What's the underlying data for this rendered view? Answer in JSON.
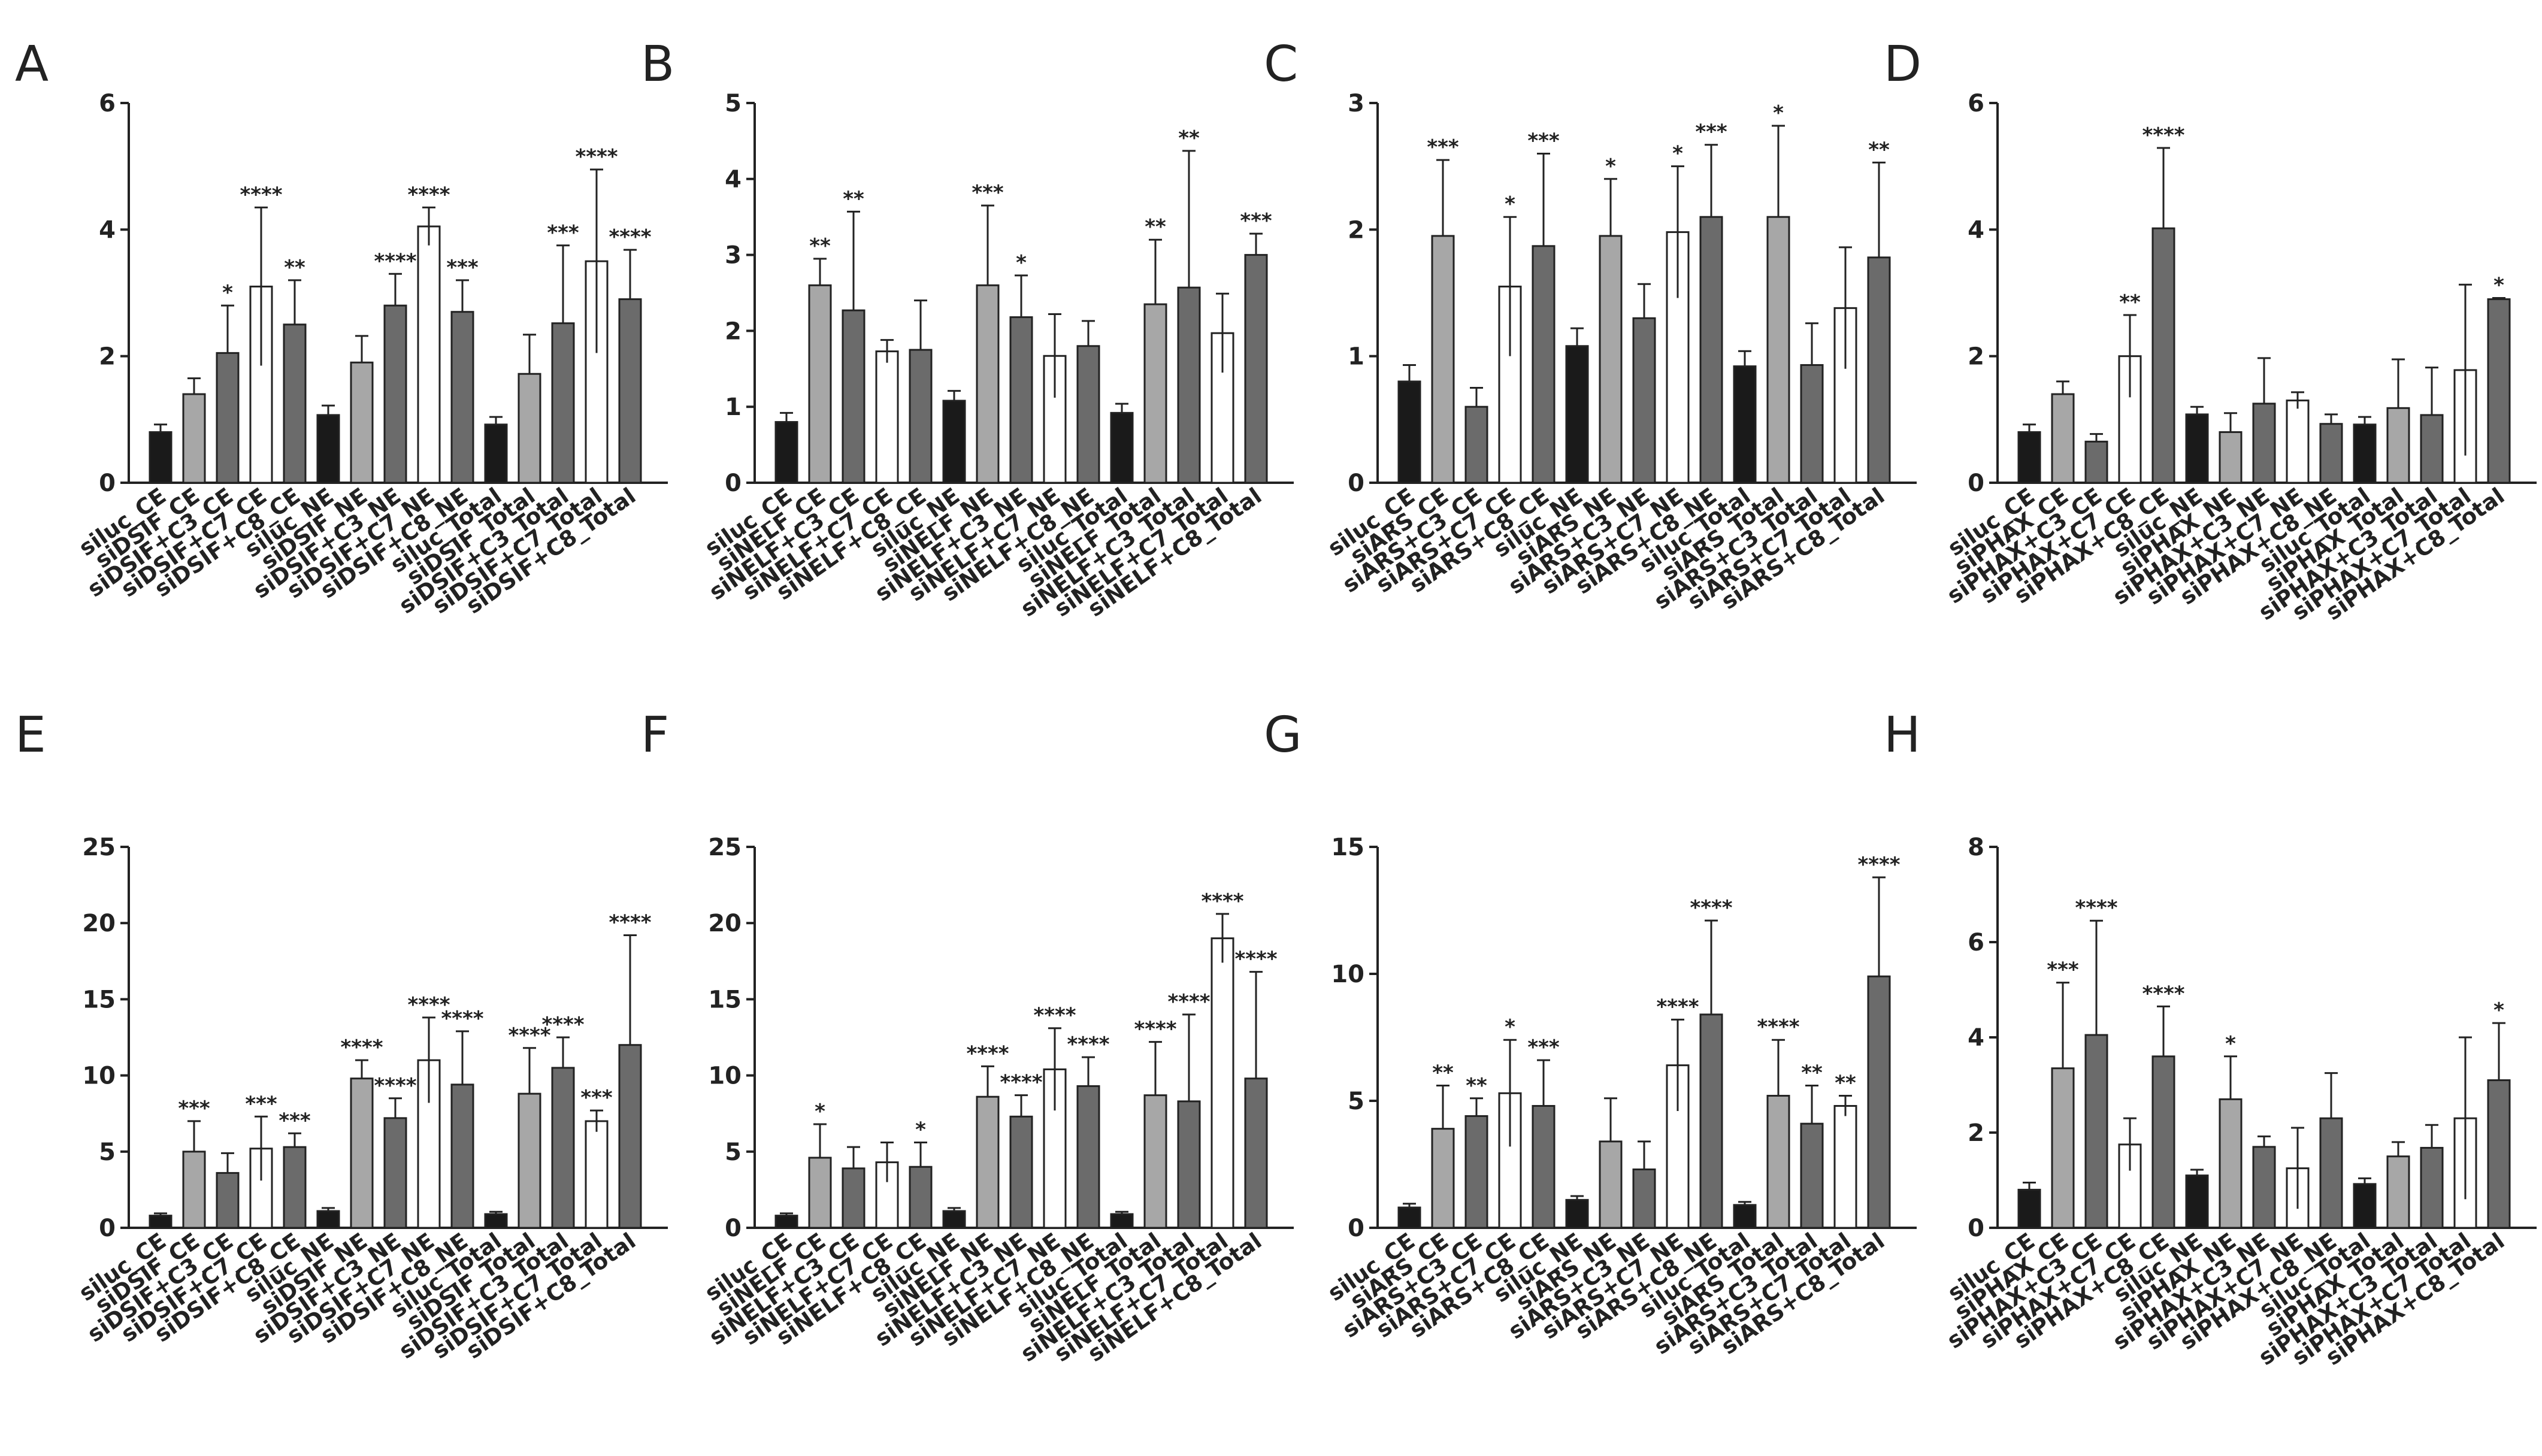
{
  "palette": {
    "black": "#1a1a1a",
    "light": "#a7a7a7",
    "dark": "#6b6b6b",
    "white": "#ffffff",
    "axis": "#222222"
  },
  "chart_data": [
    {
      "type": "bar",
      "panel": "A",
      "title": "",
      "xlabel": "",
      "ylabel": "",
      "ylim": [
        0,
        6
      ],
      "yticks": [
        0,
        2,
        4,
        6
      ],
      "categories": [
        "siluc_CE",
        "siDSIF_CE",
        "siDSIF+C3_CE",
        "siDSIF+C7_CE",
        "siDSIF+C8_CE",
        "siluc_NE",
        "siDSIF_NE",
        "siDSIF+C3_NE",
        "siDSIF+C7_NE",
        "siDSIF+C8_NE",
        "siluc_Total",
        "siDSIF_Total",
        "siDSIF+C3_Total",
        "siDSIF+C7_Total",
        "siDSIF+C8_Total"
      ],
      "values": [
        0.8,
        1.4,
        2.05,
        3.1,
        2.5,
        1.07,
        1.9,
        2.8,
        4.05,
        2.7,
        0.92,
        1.72,
        2.52,
        3.5,
        2.9
      ],
      "errors": [
        0.12,
        0.25,
        0.75,
        1.25,
        0.7,
        0.15,
        0.42,
        0.5,
        0.3,
        0.5,
        0.12,
        0.62,
        1.23,
        1.45,
        0.78
      ],
      "significance": [
        "",
        "",
        "*",
        "****",
        "**",
        "",
        "",
        "****",
        "****",
        "***",
        "",
        "",
        "***",
        "****",
        "****"
      ],
      "fills": [
        "black",
        "light",
        "dark",
        "white",
        "dark",
        "black",
        "light",
        "dark",
        "white",
        "dark",
        "black",
        "light",
        "dark",
        "white",
        "dark"
      ]
    },
    {
      "type": "bar",
      "panel": "B",
      "title": "",
      "xlabel": "",
      "ylabel": "",
      "ylim": [
        0,
        5
      ],
      "yticks": [
        0,
        1,
        2,
        3,
        4,
        5
      ],
      "categories": [
        "siluc_CE",
        "siNELF_CE",
        "siNELF+C3_CE",
        "siNELF+C7_CE",
        "siNELF+C8_CE",
        "siluc_NE",
        "siNELF_NE",
        "siNELF+C3_NE",
        "siNELF+C7_NE",
        "siNELF+C8_NE",
        "siluc_Total",
        "siNELF_Total",
        "siNELF+C3_Total",
        "siNELF+C7_Total",
        "siNELF+C8_Total"
      ],
      "values": [
        0.8,
        2.6,
        2.27,
        1.73,
        1.75,
        1.08,
        2.6,
        2.18,
        1.67,
        1.8,
        0.92,
        2.35,
        2.57,
        1.97,
        3.0
      ],
      "errors": [
        0.12,
        0.35,
        1.3,
        0.15,
        0.65,
        0.13,
        1.05,
        0.55,
        0.55,
        0.33,
        0.12,
        0.85,
        1.8,
        0.52,
        0.28
      ],
      "significance": [
        "",
        "**",
        "**",
        "",
        "",
        "",
        "***",
        "*",
        "",
        "",
        "",
        "**",
        "**",
        "",
        "***"
      ],
      "fills": [
        "black",
        "light",
        "dark",
        "white",
        "dark",
        "black",
        "light",
        "dark",
        "white",
        "dark",
        "black",
        "light",
        "dark",
        "white",
        "dark"
      ]
    },
    {
      "type": "bar",
      "panel": "C",
      "title": "",
      "xlabel": "",
      "ylabel": "",
      "ylim": [
        0,
        3
      ],
      "yticks": [
        0,
        1,
        2,
        3
      ],
      "categories": [
        "siluc_CE",
        "siARS_CE",
        "siARS+C3_CE",
        "siARS+C7_CE",
        "siARS+C8_CE",
        "siluc_NE",
        "siARS_NE",
        "siARS+C3_NE",
        "siARS+C7_NE",
        "siARS+C8_NE",
        "siluc_Total",
        "siARS_Total",
        "siARS+C3_Total",
        "siARS+C7_Total",
        "siARS+C8_Total"
      ],
      "values": [
        0.8,
        1.95,
        0.6,
        1.55,
        1.87,
        1.08,
        1.95,
        1.3,
        1.98,
        2.1,
        0.92,
        2.1,
        0.93,
        1.38,
        1.78
      ],
      "errors": [
        0.13,
        0.6,
        0.15,
        0.55,
        0.73,
        0.14,
        0.45,
        0.27,
        0.52,
        0.57,
        0.12,
        0.72,
        0.33,
        0.48,
        0.75
      ],
      "significance": [
        "",
        "***",
        "",
        "*",
        "***",
        "",
        "*",
        "",
        "*",
        "***",
        "",
        "*",
        "",
        "",
        "**"
      ],
      "fills": [
        "black",
        "light",
        "dark",
        "white",
        "dark",
        "black",
        "light",
        "dark",
        "white",
        "dark",
        "black",
        "light",
        "dark",
        "white",
        "dark"
      ]
    },
    {
      "type": "bar",
      "panel": "D",
      "title": "",
      "xlabel": "",
      "ylabel": "",
      "ylim": [
        0,
        6
      ],
      "yticks": [
        0,
        2,
        4,
        6
      ],
      "categories": [
        "siluc_CE",
        "siPHAX_CE",
        "siPHAX+C3_CE",
        "siPHAX+C7_CE",
        "siPHAX+C8_CE",
        "siluc_NE",
        "siPHAX_NE",
        "siPHAX+C3_NE",
        "siPHAX+C7_NE",
        "siPHAX+C8_NE",
        "siluc_Total",
        "siPHAX_Total",
        "siPHAX+C3_Total",
        "siPHAX+C7_Total",
        "siPHAX+C8_Total"
      ],
      "values": [
        0.8,
        1.4,
        0.65,
        2.0,
        4.02,
        1.08,
        0.8,
        1.25,
        1.3,
        0.93,
        0.92,
        1.18,
        1.07,
        1.78,
        2.9
      ],
      "errors": [
        0.12,
        0.2,
        0.12,
        0.65,
        1.27,
        0.12,
        0.3,
        0.72,
        0.13,
        0.15,
        0.12,
        0.77,
        0.75,
        1.35,
        0.02
      ],
      "significance": [
        "",
        "",
        "",
        "**",
        "****",
        "",
        "",
        "",
        "",
        "",
        "",
        "",
        "",
        "",
        "*"
      ],
      "fills": [
        "black",
        "light",
        "dark",
        "white",
        "dark",
        "black",
        "light",
        "dark",
        "white",
        "dark",
        "black",
        "light",
        "dark",
        "white",
        "dark"
      ]
    },
    {
      "type": "bar",
      "panel": "E",
      "title": "",
      "xlabel": "",
      "ylabel": "",
      "ylim": [
        0,
        25
      ],
      "yticks": [
        0,
        5,
        10,
        15,
        20,
        25
      ],
      "categories": [
        "siluc_CE",
        "siDSIF_CE",
        "siDSIF+C3_CE",
        "siDSIF+C7_CE",
        "siDSIF+C8_CE",
        "siluc_NE",
        "siDSIF_NE",
        "siDSIF+C3_NE",
        "siDSIF+C7_NE",
        "siDSIF+C8_NE",
        "siluc_Total",
        "siDSIF_Total",
        "siDSIF+C3_Total",
        "siDSIF+C7_Total",
        "siDSIF+C8_Total"
      ],
      "values": [
        0.8,
        5.0,
        3.6,
        5.2,
        5.3,
        1.1,
        9.8,
        7.2,
        11.0,
        9.4,
        0.9,
        8.8,
        10.5,
        7.0,
        12.0
      ],
      "errors": [
        0.15,
        2.0,
        1.3,
        2.1,
        0.9,
        0.2,
        1.2,
        1.3,
        2.8,
        3.5,
        0.15,
        3.0,
        2.0,
        0.7,
        7.2
      ],
      "significance": [
        "",
        "***",
        "",
        "***",
        "***",
        "",
        "****",
        "****",
        "****",
        "****",
        "",
        "****",
        "****",
        "***",
        "****"
      ],
      "fills": [
        "black",
        "light",
        "dark",
        "white",
        "dark",
        "black",
        "light",
        "dark",
        "white",
        "dark",
        "black",
        "light",
        "dark",
        "white",
        "dark"
      ]
    },
    {
      "type": "bar",
      "panel": "F",
      "title": "",
      "xlabel": "",
      "ylabel": "",
      "ylim": [
        0,
        25
      ],
      "yticks": [
        0,
        5,
        10,
        15,
        20,
        25
      ],
      "categories": [
        "siluc_CE",
        "siNELF_CE",
        "siNELF+C3_CE",
        "siNELF+C7_CE",
        "siNELF+C8_CE",
        "siluc_NE",
        "siNELF_NE",
        "siNELF+C3_NE",
        "siNELF+C7_NE",
        "siNELF+C8_NE",
        "siluc_Total",
        "siNELF_Total",
        "siNELF+C3_Total",
        "siNELF+C7_Total",
        "siNELF+C8_Total"
      ],
      "values": [
        0.8,
        4.6,
        3.9,
        4.3,
        4.0,
        1.1,
        8.6,
        7.3,
        10.4,
        9.3,
        0.9,
        8.7,
        8.3,
        19.0,
        9.8
      ],
      "errors": [
        0.15,
        2.2,
        1.4,
        1.3,
        1.6,
        0.2,
        2.0,
        1.4,
        2.7,
        1.9,
        0.15,
        3.5,
        5.7,
        1.6,
        7.0
      ],
      "significance": [
        "",
        "*",
        "",
        "",
        "*",
        "",
        "****",
        "****",
        "****",
        "****",
        "",
        "****",
        "****",
        "****",
        "****"
      ],
      "fills": [
        "black",
        "light",
        "dark",
        "white",
        "dark",
        "black",
        "light",
        "dark",
        "white",
        "dark",
        "black",
        "light",
        "dark",
        "white",
        "dark"
      ]
    },
    {
      "type": "bar",
      "panel": "G",
      "title": "",
      "xlabel": "",
      "ylabel": "",
      "ylim": [
        0,
        15
      ],
      "yticks": [
        0,
        5,
        10,
        15
      ],
      "categories": [
        "siluc_CE",
        "siARS_CE",
        "siARS+C3_CE",
        "siARS+C7_CE",
        "siARS+C8_CE",
        "siluc_NE",
        "siARS_NE",
        "siARS+C3_NE",
        "siARS+C7_NE",
        "siARS+C8_NE",
        "siluc_Total",
        "siARS_Total",
        "siARS+C3_Total",
        "siARS+C7_Total",
        "siARS+C8_Total"
      ],
      "values": [
        0.8,
        3.9,
        4.4,
        5.3,
        4.8,
        1.1,
        3.4,
        2.3,
        6.4,
        8.4,
        0.9,
        5.2,
        4.1,
        4.8,
        9.9
      ],
      "errors": [
        0.15,
        1.7,
        0.7,
        2.1,
        1.8,
        0.15,
        1.7,
        1.1,
        1.8,
        3.7,
        0.12,
        2.2,
        1.5,
        0.4,
        3.9
      ],
      "significance": [
        "",
        "**",
        "**",
        "*",
        "***",
        "",
        "",
        "",
        "****",
        "****",
        "",
        "****",
        "**",
        "**",
        "****"
      ],
      "fills": [
        "black",
        "light",
        "dark",
        "white",
        "dark",
        "black",
        "light",
        "dark",
        "white",
        "dark",
        "black",
        "light",
        "dark",
        "white",
        "dark"
      ]
    },
    {
      "type": "bar",
      "panel": "H",
      "title": "",
      "xlabel": "",
      "ylabel": "",
      "ylim": [
        0,
        8
      ],
      "yticks": [
        0,
        2,
        4,
        6,
        8
      ],
      "categories": [
        "siluc_CE",
        "siPHAX_CE",
        "siPHAX+C3_CE",
        "siPHAX+C7_CE",
        "siPHAX+C8_CE",
        "siluc_NE",
        "siPHAX_NE",
        "siPHAX+C3_NE",
        "siPHAX+C7_NE",
        "siPHAX+C8_NE",
        "siluc_Total",
        "siPHAX_Total",
        "siPHAX+C3_Total",
        "siPHAX+C7_Total",
        "siPHAX+C8_Total"
      ],
      "values": [
        0.8,
        3.35,
        4.05,
        1.75,
        3.6,
        1.1,
        2.7,
        1.7,
        1.25,
        2.3,
        0.92,
        1.5,
        1.68,
        2.3,
        3.1
      ],
      "errors": [
        0.15,
        1.8,
        2.4,
        0.55,
        1.05,
        0.12,
        0.9,
        0.22,
        0.85,
        0.95,
        0.12,
        0.3,
        0.48,
        1.7,
        1.2
      ],
      "significance": [
        "",
        "***",
        "****",
        "",
        "****",
        "",
        "*",
        "",
        "",
        "",
        "",
        "",
        "",
        "",
        "*"
      ],
      "fills": [
        "black",
        "light",
        "dark",
        "white",
        "dark",
        "black",
        "light",
        "dark",
        "white",
        "dark",
        "black",
        "light",
        "dark",
        "white",
        "dark"
      ]
    }
  ]
}
